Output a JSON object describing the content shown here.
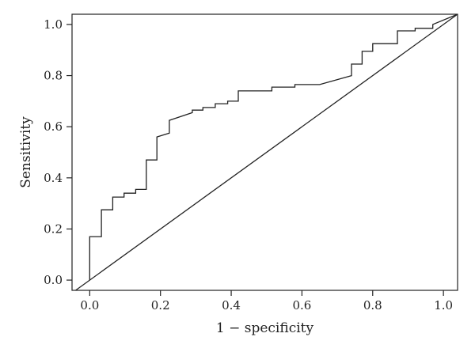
{
  "chart_data": {
    "type": "line",
    "xlabel": "1 − specificity",
    "ylabel": "Sensitivity",
    "xlim": [
      -0.05,
      1.04
    ],
    "ylim": [
      -0.04,
      1.04
    ],
    "x_ticks": [
      0.0,
      0.2,
      0.4,
      0.6,
      0.8,
      1.0
    ],
    "x_tick_labels": [
      "0.0",
      "0.2",
      "0.4",
      "0.6",
      "0.8",
      "1.0"
    ],
    "y_ticks": [
      0.0,
      0.2,
      0.4,
      0.6,
      0.8,
      1.0
    ],
    "y_tick_labels": [
      "0.0",
      "0.2",
      "0.4",
      "0.6",
      "0.8",
      "1.0"
    ],
    "grid": false,
    "series": [
      {
        "style": "step",
        "color": "#222222",
        "x": [
          0.0,
          0.0,
          0.033,
          0.033,
          0.065,
          0.065,
          0.097,
          0.097,
          0.13,
          0.13,
          0.16,
          0.16,
          0.19,
          0.19,
          0.225,
          0.225,
          0.29,
          0.29,
          0.32,
          0.32,
          0.355,
          0.355,
          0.39,
          0.39,
          0.42,
          0.42,
          0.515,
          0.515,
          0.58,
          0.58,
          0.65,
          0.74,
          0.74,
          0.77,
          0.77,
          0.8,
          0.8,
          0.87,
          0.87,
          0.92,
          0.92,
          0.97,
          0.97,
          1.04
        ],
        "y": [
          0.0,
          0.17,
          0.17,
          0.275,
          0.275,
          0.325,
          0.325,
          0.34,
          0.34,
          0.355,
          0.355,
          0.47,
          0.47,
          0.56,
          0.575,
          0.625,
          0.655,
          0.665,
          0.665,
          0.675,
          0.675,
          0.69,
          0.69,
          0.7,
          0.7,
          0.74,
          0.74,
          0.755,
          0.755,
          0.765,
          0.765,
          0.8,
          0.845,
          0.845,
          0.895,
          0.895,
          0.925,
          0.925,
          0.975,
          0.975,
          0.985,
          0.985,
          1.0,
          1.04
        ]
      },
      {
        "style": "diagonal",
        "color": "#222222",
        "x": [
          -0.04,
          1.04
        ],
        "y": [
          -0.04,
          1.04
        ]
      }
    ]
  }
}
